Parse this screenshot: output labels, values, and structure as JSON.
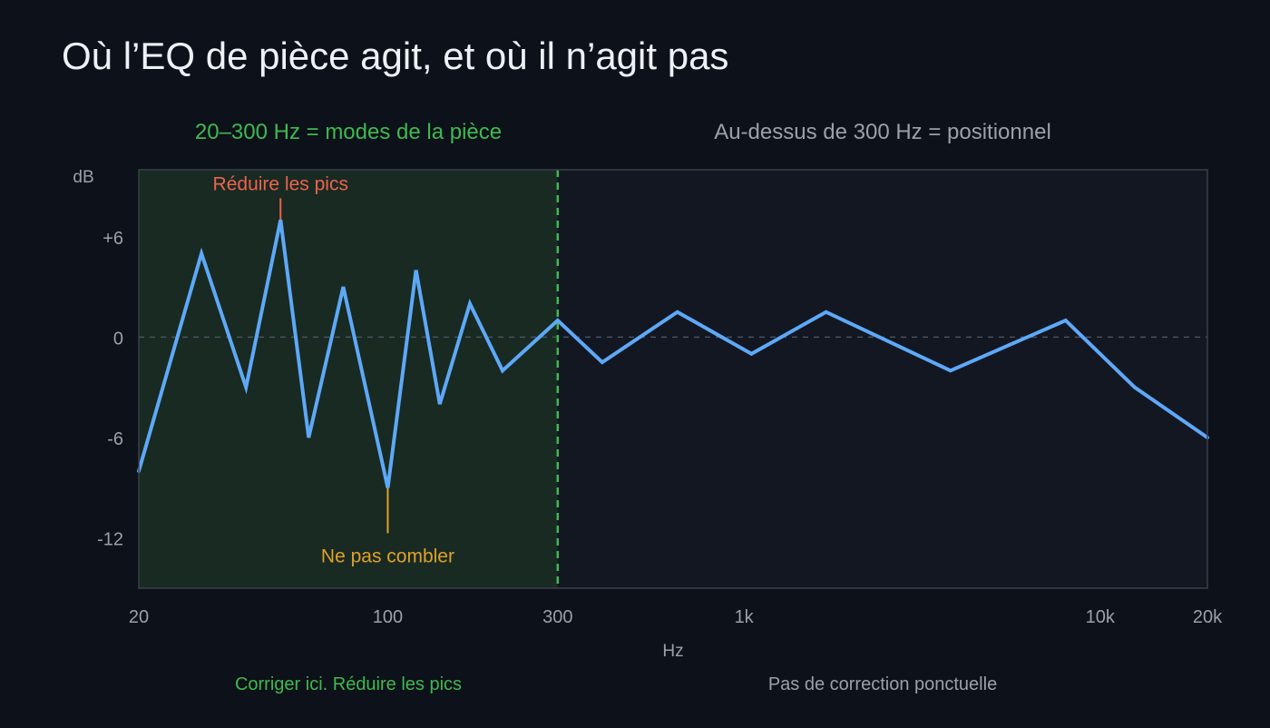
{
  "title": "Où l’EQ de pièce agit, et où il n’agit pas",
  "colors": {
    "background": "#0d1119",
    "plot_bg": "#121722",
    "room_zone_bg": "#182a22",
    "line": "#5ea8f7",
    "green": "#3fb950",
    "gray_text": "#9aa1ab",
    "peak": "#f0624d",
    "dip": "#e0a12b",
    "frame": "#3a404a"
  },
  "chart_data": {
    "type": "line",
    "x_scale": "log",
    "xlim": [
      20,
      20000
    ],
    "ylim": [
      -15,
      10
    ],
    "xlabel": "Hz",
    "ylabel": "dB",
    "x_ticks": [
      {
        "value": 20,
        "label": "20"
      },
      {
        "value": 100,
        "label": "100"
      },
      {
        "value": 300,
        "label": "300"
      },
      {
        "value": 1000,
        "label": "1k"
      },
      {
        "value": 10000,
        "label": "10k"
      },
      {
        "value": 20000,
        "label": "20k"
      }
    ],
    "y_ticks": [
      {
        "value": 6,
        "label": "+6"
      },
      {
        "value": 0,
        "label": "0"
      },
      {
        "value": -6,
        "label": "-6"
      },
      {
        "value": -12,
        "label": "-12"
      }
    ],
    "zero_line": true,
    "series": [
      {
        "x": [
          20,
          30,
          40,
          50,
          60,
          75,
          100,
          120,
          140,
          170,
          210,
          300,
          400,
          650,
          1050,
          1700,
          3800,
          8000,
          12500,
          20000
        ],
        "y": [
          -8,
          5,
          -3,
          7,
          -6,
          3,
          -9,
          4,
          -4,
          2,
          -2,
          1,
          -1.5,
          1.5,
          -1,
          1.5,
          -2,
          1,
          -3,
          -6
        ]
      }
    ],
    "regions": [
      {
        "from": 20,
        "to": 300,
        "label": "20–300 Hz = modes de la pièce",
        "footer": "Corriger ici. Réduire les pics"
      },
      {
        "from": 300,
        "to": 20000,
        "label": "Au-dessus de 300 Hz = positionnel",
        "footer": "Pas de correction ponctuelle"
      }
    ],
    "divider_x": 300,
    "annotations": [
      {
        "x": 50,
        "y": 7,
        "text": "Réduire les pics",
        "kind": "peak"
      },
      {
        "x": 100,
        "y": -9,
        "text": "Ne pas combler",
        "kind": "dip"
      }
    ]
  }
}
